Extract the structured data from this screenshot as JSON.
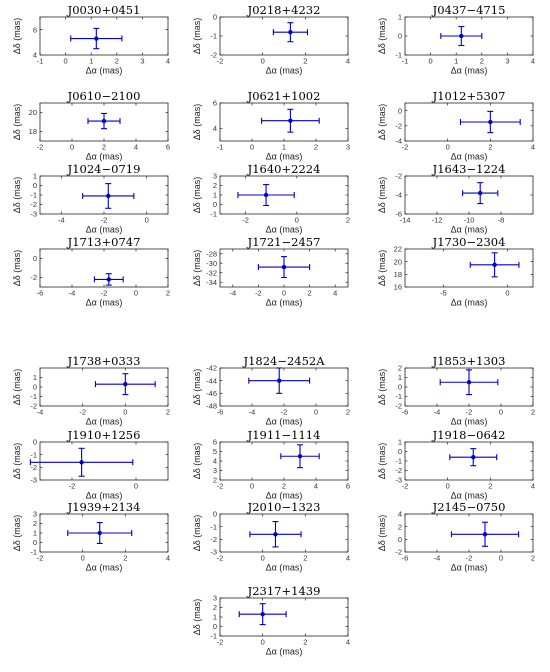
{
  "chart_data": [
    {
      "type": "scatter",
      "title": "J0030+0451",
      "xlabel": "Δα (mas)",
      "ylabel": "Δδ (mas)",
      "xlim": [
        -1,
        4
      ],
      "ylim": [
        4,
        7
      ],
      "xticks": [
        -1,
        0,
        1,
        2,
        3,
        4
      ],
      "yticks": [
        4,
        6
      ],
      "x": 1.2,
      "y": 5.3,
      "xerr": 1.0,
      "yerr": 0.8
    },
    {
      "type": "scatter",
      "title": "J0218+4232",
      "xlabel": "Δα (mas)",
      "ylabel": "Δδ (mas)",
      "xlim": [
        -2,
        4
      ],
      "ylim": [
        -2,
        0
      ],
      "xticks": [
        -2,
        0,
        2,
        4
      ],
      "yticks": [
        -2,
        -1,
        0
      ],
      "x": 1.3,
      "y": -0.8,
      "xerr": 0.8,
      "yerr": 0.5
    },
    {
      "type": "scatter",
      "title": "J0437−4715",
      "xlabel": "Δα (mas)",
      "ylabel": "Δδ (mas)",
      "xlim": [
        -1,
        4
      ],
      "ylim": [
        -1,
        1
      ],
      "xticks": [
        -1,
        0,
        1,
        2,
        3,
        4
      ],
      "yticks": [
        -1,
        0,
        1
      ],
      "x": 1.2,
      "y": 0.0,
      "xerr": 0.8,
      "yerr": 0.5
    },
    {
      "type": "scatter",
      "title": "J0610−2100",
      "xlabel": "Δα (mas)",
      "ylabel": "Δδ (mas)",
      "xlim": [
        -2,
        6
      ],
      "ylim": [
        17,
        21
      ],
      "xticks": [
        -2,
        0,
        2,
        4,
        6
      ],
      "yticks": [
        18,
        20
      ],
      "x": 2.0,
      "y": 19.1,
      "xerr": 1.0,
      "yerr": 0.8
    },
    {
      "type": "scatter",
      "title": "J0621+1002",
      "xlabel": "Δα (mas)",
      "ylabel": "Δδ (mas)",
      "xlim": [
        -1,
        3
      ],
      "ylim": [
        3,
        6
      ],
      "xticks": [
        -1,
        0,
        1,
        2,
        3
      ],
      "yticks": [
        4,
        6
      ],
      "x": 1.2,
      "y": 4.6,
      "xerr": 0.9,
      "yerr": 0.9
    },
    {
      "type": "scatter",
      "title": "J1012+5307",
      "xlabel": "Δα (mas)",
      "ylabel": "Δδ (mas)",
      "xlim": [
        -2,
        4
      ],
      "ylim": [
        -4,
        1
      ],
      "xticks": [
        -2,
        0,
        2,
        4
      ],
      "yticks": [
        -4,
        -2,
        0
      ],
      "x": 2.0,
      "y": -1.5,
      "xerr": 1.4,
      "yerr": 1.4
    },
    {
      "type": "scatter",
      "title": "J1024−0719",
      "xlabel": "Δα (mas)",
      "ylabel": "Δδ (mas)",
      "xlim": [
        -5,
        1
      ],
      "ylim": [
        -3,
        1
      ],
      "xticks": [
        -4,
        -2,
        0
      ],
      "yticks": [
        -3,
        -2,
        -1,
        0,
        1
      ],
      "x": -1.8,
      "y": -1.1,
      "xerr": 1.2,
      "yerr": 1.3
    },
    {
      "type": "scatter",
      "title": "J1640+2224",
      "xlabel": "Δα (mas)",
      "ylabel": "Δδ (mas)",
      "xlim": [
        -3,
        2
      ],
      "ylim": [
        -1,
        3
      ],
      "xticks": [
        -2,
        0,
        2
      ],
      "yticks": [
        -1,
        0,
        1,
        2,
        3
      ],
      "x": -1.2,
      "y": 1.0,
      "xerr": 1.1,
      "yerr": 1.1
    },
    {
      "type": "scatter",
      "title": "J1643−1224",
      "xlabel": "Δα (mas)",
      "ylabel": "Δδ (mas)",
      "xlim": [
        -14,
        -6
      ],
      "ylim": [
        -6,
        -2
      ],
      "xticks": [
        -14,
        -12,
        -10,
        -8
      ],
      "yticks": [
        -6,
        -4,
        -2
      ],
      "x": -9.3,
      "y": -3.8,
      "xerr": 1.1,
      "yerr": 1.1
    },
    {
      "type": "scatter",
      "title": "J1713+0747",
      "xlabel": "Δα (mas)",
      "ylabel": "Δδ (mas)",
      "xlim": [
        -6,
        2
      ],
      "ylim": [
        -3,
        1
      ],
      "xticks": [
        -6,
        -4,
        -2,
        0,
        2
      ],
      "yticks": [
        -2,
        0
      ],
      "x": -1.7,
      "y": -2.2,
      "xerr": 0.9,
      "yerr": 0.6
    },
    {
      "type": "scatter",
      "title": "J1721−2457",
      "xlabel": "Δα (mas)",
      "ylabel": "Δδ (mas)",
      "xlim": [
        -5,
        5
      ],
      "ylim": [
        -35,
        -27
      ],
      "xticks": [
        -4,
        -2,
        0,
        2,
        4
      ],
      "yticks": [
        -34,
        -32,
        -30,
        -28
      ],
      "x": 0.0,
      "y": -30.8,
      "xerr": 2.0,
      "yerr": 2.2
    },
    {
      "type": "scatter",
      "title": "J1730−2304",
      "xlabel": "Δα (mas)",
      "ylabel": "Δδ (mas)",
      "xlim": [
        -8,
        2
      ],
      "ylim": [
        16,
        22
      ],
      "xticks": [
        -5,
        0
      ],
      "yticks": [
        16,
        18,
        20,
        22
      ],
      "x": -1.0,
      "y": 19.5,
      "xerr": 1.9,
      "yerr": 1.9
    },
    {
      "type": "scatter",
      "title": "J1738+0333",
      "xlabel": "Δα (mas)",
      "ylabel": "Δδ (mas)",
      "xlim": [
        -4,
        2
      ],
      "ylim": [
        -2,
        2
      ],
      "xticks": [
        -4,
        -2,
        0,
        2
      ],
      "yticks": [
        -2,
        -1,
        0,
        1
      ],
      "x": 0.0,
      "y": 0.3,
      "xerr": 1.4,
      "yerr": 1.1
    },
    {
      "type": "scatter",
      "title": "J1824−2452A",
      "xlabel": "Δα (mas)",
      "ylabel": "Δδ (mas)",
      "xlim": [
        -6,
        2
      ],
      "ylim": [
        -48,
        -42
      ],
      "xticks": [
        -6,
        -4,
        -2,
        0,
        2
      ],
      "yticks": [
        -48,
        -46,
        -44,
        -42
      ],
      "x": -2.3,
      "y": -44.0,
      "xerr": 1.9,
      "yerr": 2.0
    },
    {
      "type": "scatter",
      "title": "J1853+1303",
      "xlabel": "Δα (mas)",
      "ylabel": "Δδ (mas)",
      "xlim": [
        -6,
        2
      ],
      "ylim": [
        -2,
        2
      ],
      "xticks": [
        -6,
        -4,
        -2,
        0,
        2
      ],
      "yticks": [
        -2,
        -1,
        0,
        1,
        2
      ],
      "x": -2.0,
      "y": 0.5,
      "xerr": 1.8,
      "yerr": 1.3
    },
    {
      "type": "scatter",
      "title": "J1910+1256",
      "xlabel": "Δα (mas)",
      "ylabel": "Δδ (mas)",
      "xlim": [
        -3,
        1
      ],
      "ylim": [
        -3,
        0
      ],
      "xticks": [
        -2,
        0
      ],
      "yticks": [
        -3,
        -2,
        -1,
        0
      ],
      "x": -1.7,
      "y": -1.6,
      "xerr": 1.6,
      "yerr": 1.1
    },
    {
      "type": "scatter",
      "title": "J1911−1114",
      "xlabel": "Δα (mas)",
      "ylabel": "Δδ (mas)",
      "xlim": [
        -2,
        6
      ],
      "ylim": [
        2,
        6
      ],
      "xticks": [
        -2,
        0,
        2,
        4,
        6
      ],
      "yticks": [
        2,
        3,
        4,
        5,
        6
      ],
      "x": 3.0,
      "y": 4.5,
      "xerr": 1.2,
      "yerr": 1.2
    },
    {
      "type": "scatter",
      "title": "J1918−0642",
      "xlabel": "Δα (mas)",
      "ylabel": "Δδ (mas)",
      "xlim": [
        -2,
        4
      ],
      "ylim": [
        -3,
        1
      ],
      "xticks": [
        -2,
        0,
        2,
        4
      ],
      "yticks": [
        -3,
        -2,
        -1,
        0,
        1
      ],
      "x": 1.2,
      "y": -0.6,
      "xerr": 1.1,
      "yerr": 0.9
    },
    {
      "type": "scatter",
      "title": "J1939+2134",
      "xlabel": "Δα (mas)",
      "ylabel": "Δδ (mas)",
      "xlim": [
        -2,
        4
      ],
      "ylim": [
        -1,
        3
      ],
      "xticks": [
        -2,
        0,
        2,
        4
      ],
      "yticks": [
        -1,
        0,
        1,
        2,
        3
      ],
      "x": 0.8,
      "y": 1.0,
      "xerr": 1.5,
      "yerr": 1.1
    },
    {
      "type": "scatter",
      "title": "J2010−1323",
      "xlabel": "Δα (mas)",
      "ylabel": "Δδ (mas)",
      "xlim": [
        -2,
        4
      ],
      "ylim": [
        -3,
        0
      ],
      "xticks": [
        -2,
        0,
        2,
        4
      ],
      "yticks": [
        -3,
        -2,
        -1,
        0
      ],
      "x": 0.6,
      "y": -1.6,
      "xerr": 1.2,
      "yerr": 1.0
    },
    {
      "type": "scatter",
      "title": "J2145−0750",
      "xlabel": "Δα (mas)",
      "ylabel": "Δδ (mas)",
      "xlim": [
        -6,
        2
      ],
      "ylim": [
        -2,
        4
      ],
      "xticks": [
        -6,
        -4,
        -2,
        0,
        2
      ],
      "yticks": [
        -2,
        0,
        2,
        4
      ],
      "x": -1.0,
      "y": 0.8,
      "xerr": 2.1,
      "yerr": 1.9
    },
    {
      "type": "scatter",
      "title": "J2317+1439",
      "xlabel": "Δα (mas)",
      "ylabel": "Δδ (mas)",
      "xlim": [
        -2,
        4
      ],
      "ylim": [
        -1,
        3
      ],
      "xticks": [
        -2,
        0,
        2,
        4
      ],
      "yticks": [
        -1,
        0,
        1,
        2,
        3
      ],
      "x": 0.0,
      "y": 1.3,
      "xerr": 1.1,
      "yerr": 1.1
    }
  ],
  "colors": {
    "errorbar": "#0000cc",
    "frame": "#262626"
  }
}
